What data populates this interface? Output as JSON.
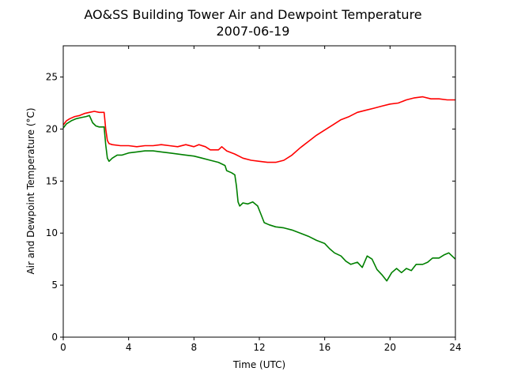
{
  "chart_data": {
    "type": "line",
    "title_line1": "AO&SS Building Tower Air and Dewpoint Temperature",
    "title_line2": "2007-06-19",
    "xlabel": "Time (UTC)",
    "ylabel": "Air and Dewpoint Temperature (°C)",
    "xlim": [
      0,
      24
    ],
    "ylim": [
      0,
      28
    ],
    "xticks": [
      0,
      4,
      8,
      12,
      16,
      20,
      24
    ],
    "yticks": [
      0,
      5,
      10,
      15,
      20,
      25
    ],
    "grid": false,
    "series": [
      {
        "color": "#ff0000",
        "points": [
          [
            0.0,
            20.4
          ],
          [
            0.2,
            20.8
          ],
          [
            0.4,
            21.0
          ],
          [
            0.7,
            21.2
          ],
          [
            1.0,
            21.3
          ],
          [
            1.3,
            21.5
          ],
          [
            1.6,
            21.6
          ],
          [
            1.9,
            21.7
          ],
          [
            2.2,
            21.6
          ],
          [
            2.5,
            21.6
          ],
          [
            2.6,
            20.0
          ],
          [
            2.7,
            18.9
          ],
          [
            2.8,
            18.6
          ],
          [
            3.0,
            18.5
          ],
          [
            3.5,
            18.4
          ],
          [
            4.0,
            18.4
          ],
          [
            4.5,
            18.3
          ],
          [
            5.0,
            18.4
          ],
          [
            5.5,
            18.4
          ],
          [
            6.0,
            18.5
          ],
          [
            6.5,
            18.4
          ],
          [
            7.0,
            18.3
          ],
          [
            7.5,
            18.5
          ],
          [
            8.0,
            18.3
          ],
          [
            8.3,
            18.5
          ],
          [
            8.7,
            18.3
          ],
          [
            9.0,
            18.0
          ],
          [
            9.5,
            18.0
          ],
          [
            9.7,
            18.3
          ],
          [
            10.0,
            17.9
          ],
          [
            10.5,
            17.6
          ],
          [
            11.0,
            17.2
          ],
          [
            11.5,
            17.0
          ],
          [
            12.0,
            16.9
          ],
          [
            12.5,
            16.8
          ],
          [
            13.0,
            16.8
          ],
          [
            13.5,
            17.0
          ],
          [
            14.0,
            17.5
          ],
          [
            14.5,
            18.2
          ],
          [
            15.0,
            18.8
          ],
          [
            15.5,
            19.4
          ],
          [
            16.0,
            19.9
          ],
          [
            16.5,
            20.4
          ],
          [
            17.0,
            20.9
          ],
          [
            17.5,
            21.2
          ],
          [
            18.0,
            21.6
          ],
          [
            18.5,
            21.8
          ],
          [
            19.0,
            22.0
          ],
          [
            19.5,
            22.2
          ],
          [
            20.0,
            22.4
          ],
          [
            20.5,
            22.5
          ],
          [
            21.0,
            22.8
          ],
          [
            21.5,
            23.0
          ],
          [
            22.0,
            23.1
          ],
          [
            22.5,
            22.9
          ],
          [
            23.0,
            22.9
          ],
          [
            23.5,
            22.8
          ],
          [
            24.0,
            22.8
          ]
        ]
      },
      {
        "color": "#008000",
        "points": [
          [
            0.0,
            20.1
          ],
          [
            0.2,
            20.5
          ],
          [
            0.5,
            20.8
          ],
          [
            0.8,
            21.0
          ],
          [
            1.1,
            21.1
          ],
          [
            1.4,
            21.2
          ],
          [
            1.6,
            21.3
          ],
          [
            1.8,
            20.6
          ],
          [
            2.0,
            20.3
          ],
          [
            2.2,
            20.2
          ],
          [
            2.5,
            20.2
          ],
          [
            2.6,
            18.5
          ],
          [
            2.7,
            17.2
          ],
          [
            2.8,
            16.9
          ],
          [
            3.0,
            17.2
          ],
          [
            3.3,
            17.5
          ],
          [
            3.6,
            17.5
          ],
          [
            4.0,
            17.7
          ],
          [
            4.5,
            17.8
          ],
          [
            5.0,
            17.9
          ],
          [
            5.5,
            17.9
          ],
          [
            6.0,
            17.8
          ],
          [
            6.5,
            17.7
          ],
          [
            7.0,
            17.6
          ],
          [
            7.5,
            17.5
          ],
          [
            8.0,
            17.4
          ],
          [
            8.5,
            17.2
          ],
          [
            9.0,
            17.0
          ],
          [
            9.5,
            16.8
          ],
          [
            9.9,
            16.5
          ],
          [
            10.0,
            16.0
          ],
          [
            10.3,
            15.8
          ],
          [
            10.5,
            15.6
          ],
          [
            10.6,
            14.5
          ],
          [
            10.7,
            13.0
          ],
          [
            10.8,
            12.6
          ],
          [
            11.0,
            12.9
          ],
          [
            11.3,
            12.8
          ],
          [
            11.6,
            13.0
          ],
          [
            11.9,
            12.6
          ],
          [
            12.1,
            11.8
          ],
          [
            12.3,
            11.0
          ],
          [
            12.6,
            10.8
          ],
          [
            13.0,
            10.6
          ],
          [
            13.5,
            10.5
          ],
          [
            14.0,
            10.3
          ],
          [
            14.5,
            10.0
          ],
          [
            15.0,
            9.7
          ],
          [
            15.5,
            9.3
          ],
          [
            16.0,
            9.0
          ],
          [
            16.3,
            8.5
          ],
          [
            16.6,
            8.1
          ],
          [
            17.0,
            7.8
          ],
          [
            17.3,
            7.3
          ],
          [
            17.6,
            7.0
          ],
          [
            18.0,
            7.2
          ],
          [
            18.3,
            6.7
          ],
          [
            18.6,
            7.8
          ],
          [
            18.9,
            7.5
          ],
          [
            19.2,
            6.5
          ],
          [
            19.5,
            6.0
          ],
          [
            19.8,
            5.4
          ],
          [
            20.1,
            6.2
          ],
          [
            20.4,
            6.6
          ],
          [
            20.7,
            6.2
          ],
          [
            21.0,
            6.6
          ],
          [
            21.3,
            6.4
          ],
          [
            21.6,
            7.0
          ],
          [
            22.0,
            7.0
          ],
          [
            22.3,
            7.2
          ],
          [
            22.6,
            7.6
          ],
          [
            23.0,
            7.6
          ],
          [
            23.3,
            7.9
          ],
          [
            23.6,
            8.1
          ],
          [
            24.0,
            7.5
          ]
        ]
      }
    ]
  }
}
